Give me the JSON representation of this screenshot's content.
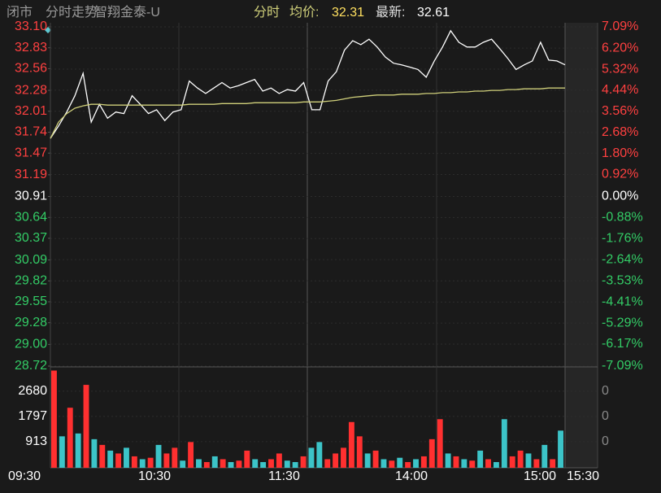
{
  "header": {
    "status": "闭市",
    "view": "分时走势",
    "name": "智翔金泰-U",
    "mode": "分时",
    "avg_label": "均价:",
    "avg_value": 32.31,
    "latest_label": "最新:",
    "latest_value": 32.61
  },
  "chart_data": [
    {
      "type": "line",
      "series": [
        {
          "color": "#ffffff",
          "values": [
            31.66,
            31.82,
            32.0,
            32.21,
            32.5,
            31.87,
            32.1,
            31.92,
            32.0,
            31.98,
            32.21,
            32.1,
            31.98,
            32.03,
            31.89,
            32.0,
            32.03,
            32.4,
            32.31,
            32.24,
            32.31,
            32.38,
            32.31,
            32.34,
            32.38,
            32.42,
            32.27,
            32.31,
            32.24,
            32.29,
            32.27,
            32.38,
            32.03,
            32.03,
            32.4,
            32.52,
            32.8,
            32.92,
            32.87,
            32.94,
            32.84,
            32.71,
            32.63,
            32.61,
            32.58,
            32.55,
            32.45,
            32.66,
            32.84,
            33.05,
            32.9,
            32.84,
            32.84,
            32.9,
            32.94,
            32.82,
            32.69,
            32.55,
            32.61,
            32.66,
            32.9,
            32.67,
            32.66,
            32.61
          ]
        },
        {
          "color": "#cfcf7a",
          "values": [
            31.66,
            31.87,
            31.98,
            32.05,
            32.08,
            32.1,
            32.1,
            32.09,
            32.09,
            32.09,
            32.09,
            32.09,
            32.09,
            32.09,
            32.09,
            32.09,
            32.09,
            32.1,
            32.1,
            32.1,
            32.1,
            32.11,
            32.11,
            32.11,
            32.11,
            32.12,
            32.12,
            32.12,
            32.12,
            32.12,
            32.12,
            32.13,
            32.13,
            32.13,
            32.14,
            32.15,
            32.17,
            32.19,
            32.2,
            32.21,
            32.22,
            32.22,
            32.22,
            32.23,
            32.23,
            32.23,
            32.24,
            32.24,
            32.25,
            32.25,
            32.26,
            32.26,
            32.27,
            32.27,
            32.28,
            32.28,
            32.29,
            32.29,
            32.3,
            32.3,
            32.3,
            32.31,
            32.31,
            32.31
          ]
        }
      ],
      "ylim": [
        28.72,
        33.1
      ],
      "yticks": [
        {
          "value": 33.1,
          "label": "33.10"
        },
        32.83,
        32.56,
        32.28,
        32.01,
        31.74,
        31.47,
        31.19,
        30.91,
        30.64,
        30.37,
        30.09,
        29.82,
        29.55,
        29.28,
        {
          "value": 29,
          "label": "29.00"
        },
        28.72
      ],
      "y2lim": [
        -7.09,
        7.09
      ],
      "y2ticks": [
        {
          "value": 7.09,
          "label": "7.09%"
        },
        {
          "value": 6.2,
          "label": "6.20%"
        },
        {
          "value": 5.32,
          "label": "5.32%"
        },
        {
          "value": 4.44,
          "label": "4.44%"
        },
        {
          "value": 3.56,
          "label": "3.56%"
        },
        {
          "value": 2.68,
          "label": "2.68%"
        },
        {
          "value": 1.8,
          "label": "1.80%"
        },
        {
          "value": 0.92,
          "label": "0.92%"
        },
        {
          "value": 0,
          "label": "0.00%"
        },
        {
          "value": -0.88,
          "label": "-0.88%"
        },
        {
          "value": -1.76,
          "label": "-1.76%"
        },
        {
          "value": -2.64,
          "label": "-2.64%"
        },
        {
          "value": -3.53,
          "label": "-3.53%"
        },
        {
          "value": -4.41,
          "label": "-4.41%"
        },
        {
          "value": -5.29,
          "label": "-5.29%"
        },
        {
          "value": -6.17,
          "label": "-6.17%"
        },
        {
          "value": -7.09,
          "label": "-7.09%"
        }
      ]
    },
    {
      "type": "bar",
      "values": [
        3400,
        1100,
        2100,
        1200,
        2900,
        1000,
        800,
        600,
        500,
        700,
        400,
        300,
        350,
        800,
        500,
        700,
        250,
        900,
        300,
        200,
        400,
        300,
        200,
        250,
        600,
        300,
        200,
        300,
        500,
        250,
        200,
        400,
        700,
        900,
        300,
        500,
        700,
        1600,
        1100,
        500,
        600,
        300,
        250,
        350,
        200,
        300,
        400,
        1000,
        1700,
        500,
        400,
        300,
        250,
        600,
        300,
        200,
        1700,
        400,
        600,
        500,
        300,
        800,
        300,
        1300
      ],
      "colors": [
        "#ff3030",
        "#3cc4c8",
        "#ff3030",
        "#3cc4c8",
        "#ff3030",
        "#3cc4c8",
        "#ff3030",
        "#3cc4c8",
        "#ff3030",
        "#3cc4c8",
        "#ff3030",
        "#3cc4c8",
        "#ff3030",
        "#3cc4c8",
        "#ff3030",
        "#ff3030",
        "#3cc4c8",
        "#ff3030",
        "#3cc4c8",
        "#ff3030",
        "#3cc4c8",
        "#ff3030",
        "#3cc4c8",
        "#ff3030",
        "#ff3030",
        "#3cc4c8",
        "#3cc4c8",
        "#ff3030",
        "#ff3030",
        "#3cc4c8",
        "#3cc4c8",
        "#ff3030",
        "#3cc4c8",
        "#3cc4c8",
        "#ff3030",
        "#ff3030",
        "#ff3030",
        "#ff3030",
        "#ff3030",
        "#3cc4c8",
        "#ff3030",
        "#3cc4c8",
        "#ff3030",
        "#3cc4c8",
        "#ff3030",
        "#3cc4c8",
        "#ff3030",
        "#ff3030",
        "#ff3030",
        "#3cc4c8",
        "#ff3030",
        "#3cc4c8",
        "#ff3030",
        "#3cc4c8",
        "#ff3030",
        "#3cc4c8",
        "#3cc4c8",
        "#ff3030",
        "#ff3030",
        "#3cc4c8",
        "#ff3030",
        "#3cc4c8",
        "#ff3030",
        "#3cc4c8"
      ],
      "ylim": [
        0,
        3500
      ],
      "yticks": [
        913,
        1797,
        2680
      ],
      "y2_labels": [
        "0",
        "0",
        "0"
      ],
      "time_labels": [
        "09:30",
        "10:30",
        "11:30",
        "14:00",
        "15:00",
        "15:30"
      ]
    }
  ]
}
